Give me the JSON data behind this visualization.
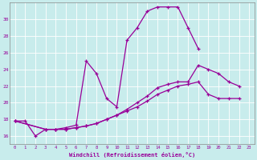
{
  "xlabel": "Windchill (Refroidissement éolien,°C)",
  "background_color": "#c8ecec",
  "line_color": "#990099",
  "grid_color": "#ffffff",
  "xlim": [
    -0.5,
    23.5
  ],
  "ylim": [
    15.0,
    32.0
  ],
  "yticks": [
    16,
    18,
    20,
    22,
    24,
    26,
    28,
    30
  ],
  "xticks": [
    0,
    1,
    2,
    3,
    4,
    5,
    6,
    7,
    8,
    9,
    10,
    11,
    12,
    13,
    14,
    15,
    16,
    17,
    18,
    19,
    20,
    21,
    22,
    23
  ],
  "series1_x": [
    0,
    1,
    2,
    3,
    4,
    5,
    6,
    7,
    8,
    9,
    10,
    11,
    12,
    13,
    14,
    15,
    16,
    17,
    18
  ],
  "series1_y": [
    17.8,
    17.8,
    16.0,
    16.8,
    16.8,
    17.0,
    17.3,
    25.0,
    23.5,
    20.5,
    19.5,
    27.5,
    29.0,
    31.0,
    31.5,
    31.5,
    31.5,
    29.0,
    26.5
  ],
  "series2_x": [
    0,
    3,
    4,
    5,
    6,
    7,
    8,
    9,
    10,
    11,
    12,
    13,
    14,
    15,
    16,
    17,
    18,
    19,
    20,
    21,
    22
  ],
  "series2_y": [
    17.8,
    16.8,
    16.8,
    16.8,
    17.0,
    17.2,
    17.5,
    18.0,
    18.5,
    19.2,
    20.0,
    20.8,
    21.8,
    22.2,
    22.5,
    22.5,
    24.5,
    24.0,
    23.5,
    22.5,
    22.0
  ],
  "series3_x": [
    0,
    3,
    4,
    5,
    6,
    7,
    8,
    9,
    10,
    11,
    12,
    13,
    14,
    15,
    16,
    17,
    18,
    19,
    20,
    21,
    22
  ],
  "series3_y": [
    17.8,
    16.8,
    16.8,
    16.8,
    17.0,
    17.2,
    17.5,
    18.0,
    18.5,
    19.0,
    19.5,
    20.2,
    21.0,
    21.5,
    22.0,
    22.2,
    22.5,
    21.0,
    20.5,
    20.5,
    20.5
  ]
}
